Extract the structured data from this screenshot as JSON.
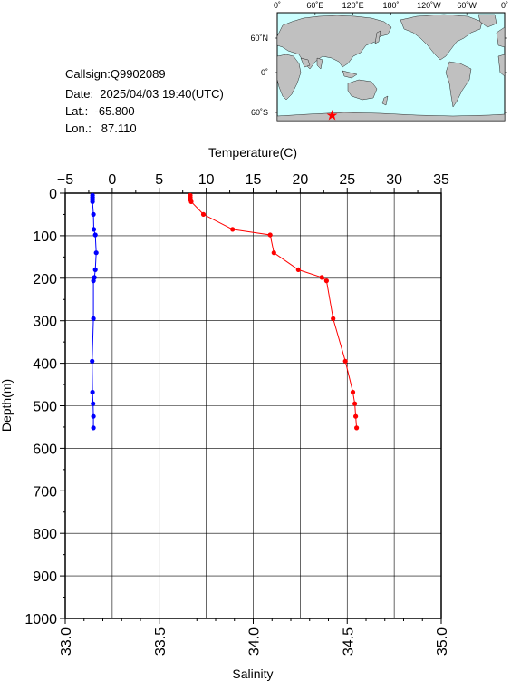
{
  "info": {
    "callsign": "Callsign:Q9902089",
    "date": "Date:  2025/04/03 19:40(UTC)",
    "lat": "Lat.:  -65.800",
    "lon": "Lon.:   87.110"
  },
  "map": {
    "top_labels": [
      "0˚",
      "60˚E",
      "120˚E",
      "180˚",
      "120˚W",
      "60˚W",
      "0˚"
    ],
    "right_labels": [
      "60˚N",
      "0˚",
      "60˚S"
    ],
    "ocean_color": "#ccffff",
    "land_color": "#c0c0c0",
    "station_marker": "star-icon",
    "station_color": "#ff0000"
  },
  "chart_data": {
    "type": "line",
    "title": "",
    "ylabel": "Depth(m)",
    "ylim": [
      1000,
      0
    ],
    "y_ticks": [
      "0",
      "100",
      "200",
      "300",
      "400",
      "500",
      "600",
      "700",
      "800",
      "900",
      "1000"
    ],
    "top_axis": {
      "label": "Temperature(C)",
      "range": [
        -5,
        35
      ],
      "ticks": [
        "−5",
        "0",
        "5",
        "10",
        "15",
        "20",
        "25",
        "30",
        "35"
      ]
    },
    "bottom_axis": {
      "label": "Salinity",
      "range": [
        33.0,
        35.0
      ],
      "ticks": [
        "33.0",
        "33.5",
        "34.0",
        "34.5",
        "35.0"
      ]
    },
    "grid": true,
    "series": [
      {
        "name": "Temperature(C)",
        "axis": "top",
        "color": "#ff0000",
        "points": [
          [
            8.3,
            5
          ],
          [
            8.3,
            10
          ],
          [
            8.3,
            15
          ],
          [
            8.4,
            20
          ],
          [
            9.7,
            50
          ],
          [
            12.8,
            85
          ],
          [
            16.8,
            98
          ],
          [
            17.2,
            140
          ],
          [
            19.8,
            180
          ],
          [
            22.3,
            198
          ],
          [
            22.8,
            206
          ],
          [
            23.5,
            295
          ],
          [
            24.8,
            395
          ],
          [
            25.6,
            468
          ],
          [
            25.8,
            495
          ],
          [
            25.9,
            525
          ],
          [
            26.0,
            552
          ]
        ]
      },
      {
        "name": "Salinity",
        "axis": "bottom",
        "color": "#0000ff",
        "points": [
          [
            33.145,
            5
          ],
          [
            33.145,
            10
          ],
          [
            33.145,
            15
          ],
          [
            33.145,
            20
          ],
          [
            33.15,
            50
          ],
          [
            33.152,
            85
          ],
          [
            33.16,
            98
          ],
          [
            33.165,
            140
          ],
          [
            33.16,
            180
          ],
          [
            33.155,
            198
          ],
          [
            33.15,
            206
          ],
          [
            33.15,
            295
          ],
          [
            33.143,
            395
          ],
          [
            33.145,
            468
          ],
          [
            33.148,
            495
          ],
          [
            33.15,
            525
          ],
          [
            33.15,
            552
          ]
        ]
      }
    ]
  }
}
